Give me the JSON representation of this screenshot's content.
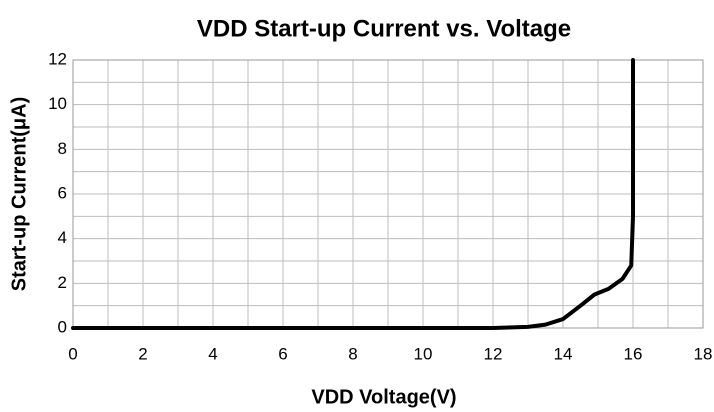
{
  "chart_data": {
    "type": "line",
    "title": "VDD Start-up Current vs. Voltage",
    "x_label": "VDD Voltage(V)",
    "y_label": "Start-up Current(μA)",
    "x": [
      0,
      12,
      13,
      13.5,
      14,
      14.5,
      14.9,
      15.3,
      15.7,
      15.95,
      16,
      16
    ],
    "series": [
      {
        "name": "Start-up Current",
        "color": "#000000",
        "values": [
          0,
          0,
          0.05,
          0.15,
          0.4,
          1,
          1.5,
          1.75,
          2.2,
          2.8,
          5,
          12
        ]
      }
    ],
    "xlim": [
      0,
      18
    ],
    "xticks": [
      0,
      2,
      4,
      6,
      8,
      10,
      12,
      14,
      16,
      18
    ],
    "xminorticks": [
      1,
      3,
      5,
      7,
      9,
      11,
      13,
      15,
      17
    ],
    "ylim": [
      0,
      12
    ],
    "yticks": [
      0,
      2,
      4,
      6,
      8,
      10,
      12
    ],
    "yminorticks": [
      1,
      3,
      5,
      7,
      9,
      11
    ],
    "grid": true
  }
}
